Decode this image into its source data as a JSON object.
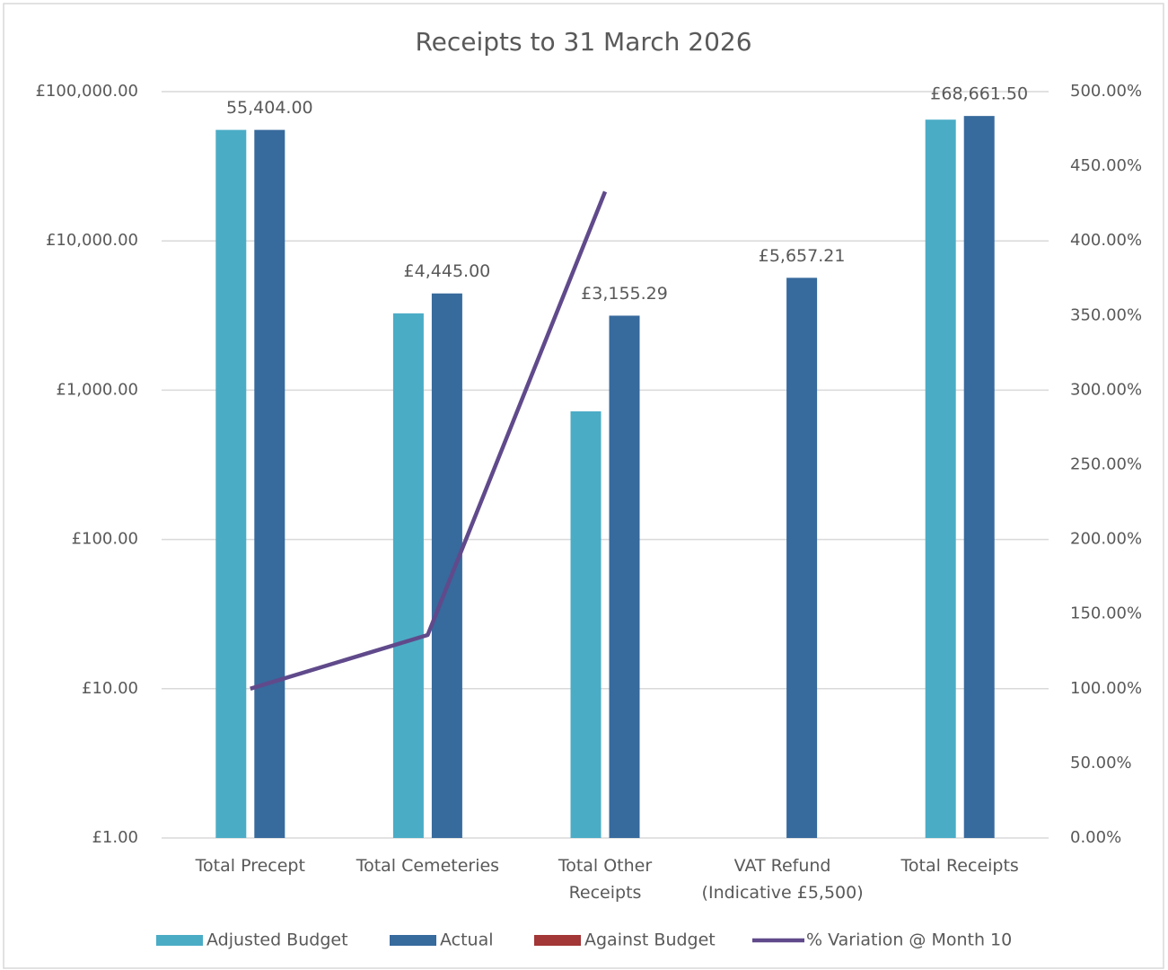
{
  "chart_data": {
    "type": "bar",
    "title": "Receipts to 31 March 2026",
    "categories": [
      "Total Precept",
      "Total Cemeteries",
      "Total Other Receipts",
      "VAT Refund (Indicative £5,500)",
      "Total Receipts"
    ],
    "series": [
      {
        "name": "Adjusted Budget",
        "type": "bar",
        "color": "#4bacc6",
        "values": [
          55404,
          3270,
          721,
          null,
          64895
        ]
      },
      {
        "name": "Actual",
        "type": "bar",
        "color": "#376a9d",
        "values": [
          55404,
          4445,
          3155.29,
          5657.21,
          68661.5
        ],
        "value_labels": [
          "55,404.00",
          "£4,445.00",
          "£3,155.29",
          "£5,657.21",
          "£68,661.50"
        ]
      },
      {
        "name": "Against Budget",
        "type": "bar",
        "color": "#a33636",
        "values": [
          null,
          null,
          null,
          null,
          null
        ]
      },
      {
        "name": "% Variation @ Month 10",
        "type": "line",
        "axis": "y2",
        "color": "#604a8b",
        "values": [
          100,
          136,
          433,
          null,
          null
        ]
      }
    ],
    "ylog": true,
    "ylim": [
      1,
      100000
    ],
    "yticks": [
      {
        "value": 1,
        "label": "£1.00"
      },
      {
        "value": 10,
        "label": "£10.00"
      },
      {
        "value": 100,
        "label": "£100.00"
      },
      {
        "value": 1000,
        "label": "£1,000.00"
      },
      {
        "value": 10000,
        "label": "£10,000.00"
      },
      {
        "value": 100000,
        "label": "£100,000.00"
      }
    ],
    "y2lim": [
      0,
      500
    ],
    "y2ticks": [
      {
        "value": 0,
        "label": "0.00%"
      },
      {
        "value": 50,
        "label": "50.00%"
      },
      {
        "value": 100,
        "label": "100.00%"
      },
      {
        "value": 150,
        "label": "150.00%"
      },
      {
        "value": 200,
        "label": "200.00%"
      },
      {
        "value": 250,
        "label": "250.00%"
      },
      {
        "value": 300,
        "label": "300.00%"
      },
      {
        "value": 350,
        "label": "350.00%"
      },
      {
        "value": 400,
        "label": "400.00%"
      },
      {
        "value": 450,
        "label": "450.00%"
      },
      {
        "value": 500,
        "label": "500.00%"
      }
    ],
    "grid": true,
    "legend": "bottom"
  }
}
